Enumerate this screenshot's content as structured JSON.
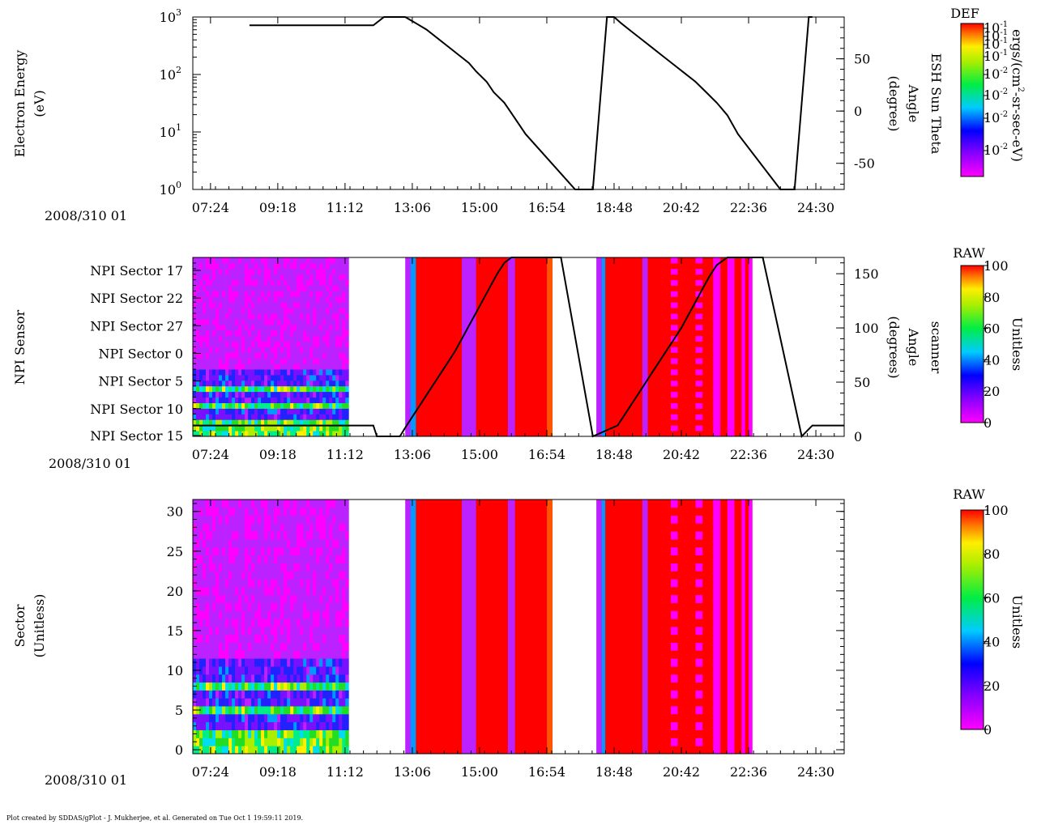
{
  "footer": "Plot created by SDDAS/gPlot - J. Mukherjee, et al.  Generated on Tue Oct 1 19:59:11 2019.",
  "colors": {
    "spectrum": [
      "#ff00ff",
      "#bb22ff",
      "#7711ff",
      "#2222ff",
      "#0099ff",
      "#00ddee",
      "#00ee88",
      "#22dd22",
      "#aaee00",
      "#ffee00",
      "#ffaa00",
      "#ff5500",
      "#ff0000"
    ],
    "line": "#000000",
    "empty": "#ffffff"
  },
  "chart_data": [
    {
      "type": "line",
      "panel": "electron-energy",
      "date_label": "2008/310 01",
      "ylabel": [
        "Electron Energy",
        "(eV)"
      ],
      "y_scale": "log",
      "ylim": [
        1,
        1000
      ],
      "y_ticks": [
        {
          "base": "10",
          "exp": "0",
          "value": 1
        },
        {
          "base": "10",
          "exp": "1",
          "value": 10
        },
        {
          "base": "10",
          "exp": "2",
          "value": 100
        },
        {
          "base": "10",
          "exp": "3",
          "value": 1000
        }
      ],
      "x_range_hours": [
        30.9,
        49.3
      ],
      "x_ticks": [
        {
          "label": "07:24",
          "value": 31.4
        },
        {
          "label": "09:18",
          "value": 33.3
        },
        {
          "label": "11:12",
          "value": 35.2
        },
        {
          "label": "13:06",
          "value": 37.1
        },
        {
          "label": "15:00",
          "value": 39.0
        },
        {
          "label": "16:54",
          "value": 40.9
        },
        {
          "label": "18:48",
          "value": 42.8
        },
        {
          "label": "20:42",
          "value": 44.7
        },
        {
          "label": "22:36",
          "value": 46.6
        },
        {
          "label": "24:30",
          "value": 48.5
        }
      ],
      "y2label": [
        "ESH Sun Theta",
        "Angle",
        "(degree)"
      ],
      "y2lim": [
        -75,
        90
      ],
      "y2_ticks": [
        50,
        0,
        -50
      ],
      "series": [
        {
          "name": "ESH Sun Theta",
          "x": [
            32.5,
            36.0,
            36.3,
            36.9,
            37.2,
            37.5,
            37.8,
            38.1,
            38.4,
            38.7,
            38.9,
            39.2,
            39.4,
            39.7,
            39.9,
            40.1,
            40.3,
            41.7,
            42.2,
            42.6,
            42.8,
            43.0,
            43.3,
            43.6,
            43.9,
            44.2,
            44.5,
            44.8,
            45.1,
            45.4,
            45.7,
            46.0,
            46.3,
            47.5,
            47.9,
            48.3,
            48.4
          ],
          "y": [
            82,
            82,
            90,
            90,
            84,
            78,
            70,
            62,
            54,
            46,
            38,
            28,
            18,
            8,
            -2,
            -12,
            -22,
            -75,
            -75,
            90,
            90,
            84,
            76,
            68,
            60,
            52,
            44,
            36,
            28,
            18,
            8,
            -4,
            -22,
            -75,
            -75,
            90,
            90
          ]
        }
      ],
      "colorbar": {
        "title": "DEF",
        "unit": [
          "ergs/(cm",
          "2",
          "-sr-sec-eV)"
        ],
        "tick_labels": [
          {
            "text": "10-1",
            "base": "10",
            "exp": "-1"
          },
          {
            "text": "10-1",
            "base": "10",
            "exp": "-1"
          },
          {
            "text": "10-1",
            "base": "10",
            "exp": "-1"
          },
          {
            "text": "10-1",
            "base": "10",
            "exp": "-1"
          },
          {
            "text": "10-2",
            "base": "10",
            "exp": "-2"
          },
          {
            "text": "10-2",
            "base": "10",
            "exp": "-2"
          },
          {
            "text": "10-2",
            "base": "10",
            "exp": "-2"
          },
          {
            "text": "10-2",
            "base": "10",
            "exp": "-2"
          }
        ]
      }
    },
    {
      "type": "heatmap",
      "panel": "npi-sensor",
      "date_label": "2008/310 01",
      "ylabel": [
        "NPI Sensor"
      ],
      "y_category_labels": [
        "NPI Sector 17",
        "NPI Sector 22",
        "NPI Sector 27",
        "NPI Sector 0",
        "NPI Sector 5",
        "NPI Sector 10",
        "NPI Sector 15"
      ],
      "y_rows": 32,
      "x_range_hours": [
        30.9,
        49.3
      ],
      "x_ticks": [
        {
          "label": "07:24",
          "value": 31.4
        },
        {
          "label": "09:18",
          "value": 33.3
        },
        {
          "label": "11:12",
          "value": 35.2
        },
        {
          "label": "13:06",
          "value": 37.1
        },
        {
          "label": "15:00",
          "value": 39.0
        },
        {
          "label": "16:54",
          "value": 40.9
        },
        {
          "label": "18:48",
          "value": 42.8
        },
        {
          "label": "20:42",
          "value": 44.7
        },
        {
          "label": "22:36",
          "value": 46.6
        },
        {
          "label": "24:30",
          "value": 48.5
        }
      ],
      "y2label": [
        "scanner",
        "Angle",
        "(degrees)"
      ],
      "y2lim": [
        0,
        165
      ],
      "y2_ticks": [
        0,
        50,
        100,
        150
      ],
      "series": [
        {
          "name": "scanner Angle",
          "x": [
            30.9,
            35.3,
            35.3,
            36.0,
            36.1,
            36.75,
            36.9,
            37.1,
            37.3,
            37.5,
            37.7,
            37.9,
            38.1,
            38.3,
            38.5,
            38.7,
            38.9,
            39.1,
            39.3,
            39.5,
            39.7,
            39.9,
            40.1,
            40.3,
            41.3,
            42.2,
            42.9,
            43.1,
            43.3,
            43.5,
            43.7,
            43.9,
            44.1,
            44.3,
            44.5,
            44.7,
            44.9,
            45.1,
            45.3,
            45.5,
            45.7,
            46.0,
            47.0,
            48.1,
            48.4,
            49.3
          ],
          "y": [
            10,
            10,
            10,
            10,
            0,
            0,
            8,
            18,
            28,
            38,
            48,
            58,
            68,
            78,
            90,
            102,
            114,
            126,
            138,
            150,
            160,
            165,
            165,
            165,
            165,
            0,
            10,
            20,
            30,
            40,
            50,
            60,
            70,
            80,
            90,
            100,
            112,
            124,
            136,
            148,
            158,
            165,
            165,
            0,
            10,
            10
          ]
        }
      ],
      "colorbar": {
        "title": "RAW",
        "unit": "Unitless",
        "ticks": [
          0,
          20,
          40,
          60,
          80,
          100
        ]
      }
    },
    {
      "type": "heatmap",
      "panel": "sector",
      "date_label": "2008/310 01",
      "ylabel": [
        "Sector",
        "(Unitless)"
      ],
      "ylim": [
        -0.5,
        31.5
      ],
      "y_ticks": [
        0,
        5,
        10,
        15,
        20,
        25,
        30
      ],
      "x_range_hours": [
        30.9,
        49.3
      ],
      "x_ticks": [
        {
          "label": "07:24",
          "value": 31.4
        },
        {
          "label": "09:18",
          "value": 33.3
        },
        {
          "label": "11:12",
          "value": 35.2
        },
        {
          "label": "13:06",
          "value": 37.1
        },
        {
          "label": "15:00",
          "value": 39.0
        },
        {
          "label": "16:54",
          "value": 40.9
        },
        {
          "label": "18:48",
          "value": 42.8
        },
        {
          "label": "20:42",
          "value": 44.7
        },
        {
          "label": "22:36",
          "value": 46.6
        },
        {
          "label": "24:30",
          "value": 48.5
        }
      ],
      "colorbar": {
        "title": "RAW",
        "unit": "Unitless",
        "ticks": [
          0,
          20,
          40,
          60,
          80,
          100
        ]
      }
    }
  ],
  "heatmap_data": {
    "unit": "RAW counts 0-100",
    "segments": [
      {
        "x": [
          30.9,
          35.3
        ],
        "mode": "quiet"
      },
      {
        "x": [
          35.3,
          36.9
        ],
        "mode": "empty"
      },
      {
        "x": [
          36.9,
          37.05
        ],
        "value": 10
      },
      {
        "x": [
          37.05,
          37.2
        ],
        "value": 35
      },
      {
        "x": [
          37.2,
          38.5
        ],
        "value": 100
      },
      {
        "x": [
          38.5,
          38.9
        ],
        "value": 5
      },
      {
        "x": [
          38.9,
          39.8
        ],
        "value": 100
      },
      {
        "x": [
          39.8,
          40.0
        ],
        "value": 5
      },
      {
        "x": [
          40.0,
          40.9
        ],
        "value": 100
      },
      {
        "x": [
          40.9,
          41.05
        ],
        "value": 92
      },
      {
        "x": [
          41.05,
          42.3
        ],
        "mode": "empty"
      },
      {
        "x": [
          42.3,
          42.45
        ],
        "value": 10
      },
      {
        "x": [
          42.45,
          42.55
        ],
        "value": 35
      },
      {
        "x": [
          42.55,
          43.6
        ],
        "value": 100
      },
      {
        "x": [
          43.6,
          43.75
        ],
        "value": 5
      },
      {
        "x": [
          43.75,
          44.4
        ],
        "value": 100
      },
      {
        "x": [
          44.4,
          44.6
        ],
        "value": "alt"
      },
      {
        "x": [
          44.6,
          45.1
        ],
        "value": 100
      },
      {
        "x": [
          45.1,
          45.3
        ],
        "value": "alt"
      },
      {
        "x": [
          45.3,
          45.6
        ],
        "value": 100
      },
      {
        "x": [
          45.6,
          45.8
        ],
        "value": 3
      },
      {
        "x": [
          45.8,
          46.0
        ],
        "value": 100
      },
      {
        "x": [
          46.0,
          46.2
        ],
        "value": 3
      },
      {
        "x": [
          46.2,
          46.4
        ],
        "value": 100
      },
      {
        "x": [
          46.4,
          46.5
        ],
        "value": 3
      },
      {
        "x": [
          46.5,
          46.6
        ],
        "value": 100
      },
      {
        "x": [
          46.6,
          46.7
        ],
        "value": 3
      },
      {
        "x": [
          46.7,
          49.3
        ],
        "mode": "empty"
      }
    ],
    "quiet_bands": [
      {
        "rows": [
          0,
          2
        ],
        "level": "high"
      },
      {
        "rows": [
          3,
          4
        ],
        "level": "mid"
      },
      {
        "rows": [
          5,
          5
        ],
        "level": "high"
      },
      {
        "rows": [
          6,
          7
        ],
        "level": "mid"
      },
      {
        "rows": [
          8,
          8
        ],
        "level": "high"
      },
      {
        "rows": [
          9,
          11
        ],
        "level": "mid"
      },
      {
        "rows": [
          12,
          31
        ],
        "level": "low"
      }
    ]
  }
}
